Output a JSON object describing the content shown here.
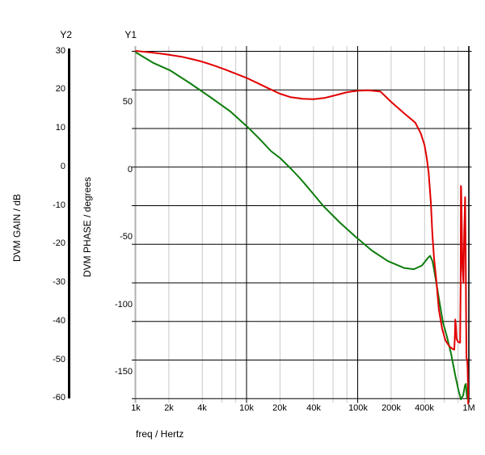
{
  "window": {
    "y2_header": "Y2",
    "y1_header": "Y1"
  },
  "colors": {
    "gain_curve": "#e10000",
    "phase_curve": "#0d7d0d",
    "grid_major": "#000000",
    "grid_minor": "#c9c9c9",
    "axis_gray": "#b0b0b0",
    "text": "#000000",
    "background": "#ffffff"
  },
  "axes": {
    "gain": {
      "title": "DVM GAIN / dB",
      "ticks": [
        {
          "label": "30",
          "value": 30
        },
        {
          "label": "20",
          "value": 20
        },
        {
          "label": "10",
          "value": 10
        },
        {
          "label": "0",
          "value": 0
        },
        {
          "label": "-10",
          "value": -10
        },
        {
          "label": "-20",
          "value": -20
        },
        {
          "label": "-30",
          "value": -30
        },
        {
          "label": "-40",
          "value": -40
        },
        {
          "label": "-50",
          "value": -50
        },
        {
          "label": "-60",
          "value": -60
        }
      ]
    },
    "phase": {
      "title": "DVM PHASE / degrees",
      "ticks": [
        {
          "label": "50",
          "value": 50
        },
        {
          "label": "0",
          "value": 0
        },
        {
          "label": "-50",
          "value": -50
        },
        {
          "label": "-100",
          "value": -100
        },
        {
          "label": "-150",
          "value": -150
        }
      ]
    },
    "freq": {
      "title": "freq / Hertz",
      "ticks": [
        {
          "label": "1k",
          "value": 1000,
          "grid": "axis"
        },
        {
          "label": "2k",
          "value": 2000,
          "grid": "minor"
        },
        {
          "label": "4k",
          "value": 4000,
          "grid": "minor"
        },
        {
          "label": "10k",
          "value": 10000,
          "grid": "major"
        },
        {
          "label": "20k",
          "value": 20000,
          "grid": "minor"
        },
        {
          "label": "40k",
          "value": 40000,
          "grid": "minor"
        },
        {
          "label": "100k",
          "value": 100000,
          "grid": "major"
        },
        {
          "label": "200k",
          "value": 200000,
          "grid": "minor"
        },
        {
          "label": "400k",
          "value": 400000,
          "grid": "minor"
        },
        {
          "label": "1M",
          "value": 1000000,
          "grid": "major"
        }
      ],
      "unlabeled_gridlines": [
        6000,
        8000,
        60000,
        80000,
        600000,
        800000
      ]
    }
  },
  "chart_data": {
    "type": "line",
    "title": "",
    "x_axis": {
      "label": "freq / Hertz",
      "scale": "log",
      "min": 1000,
      "max": 1000000,
      "tick_labels": [
        "1k",
        "2k",
        "4k",
        "10k",
        "20k",
        "40k",
        "100k",
        "200k",
        "400k",
        "1M"
      ]
    },
    "y_axes": [
      {
        "id": "Y2",
        "label": "DVM GAIN / dB",
        "min": -60,
        "max": 30,
        "ticks": [
          30,
          20,
          10,
          0,
          -10,
          -20,
          -30,
          -40,
          -50,
          -60
        ]
      },
      {
        "id": "Y1",
        "label": "DVM PHASE / degrees",
        "ticks": [
          50,
          0,
          -50,
          -100,
          -150
        ],
        "top_of_plot_value": 88,
        "bottom_of_plot_value": -169
      }
    ],
    "grid": "on",
    "legend": "none",
    "series": [
      {
        "name": "DVM GAIN",
        "axis": "Y2",
        "unit": "dB",
        "color": "#e10000",
        "points": [
          [
            1000,
            30.1
          ],
          [
            1300,
            29.8
          ],
          [
            1700,
            29.4
          ],
          [
            2000,
            29.1
          ],
          [
            2600,
            28.6
          ],
          [
            3200,
            28.0
          ],
          [
            4000,
            27.3
          ],
          [
            5000,
            26.4
          ],
          [
            6400,
            25.3
          ],
          [
            8000,
            24.2
          ],
          [
            10000,
            23.1
          ],
          [
            12500,
            21.8
          ],
          [
            16000,
            20.3
          ],
          [
            20000,
            19.0
          ],
          [
            25000,
            18.1
          ],
          [
            32000,
            17.7
          ],
          [
            40000,
            17.6
          ],
          [
            50000,
            17.9
          ],
          [
            63000,
            18.6
          ],
          [
            80000,
            19.4
          ],
          [
            100000,
            19.8
          ],
          [
            125000,
            19.9
          ],
          [
            160000,
            19.6
          ],
          [
            200000,
            16.9
          ],
          [
            260000,
            14.0
          ],
          [
            330000,
            11.5
          ],
          [
            370000,
            8.7
          ],
          [
            400000,
            5.6
          ],
          [
            420000,
            2.0
          ],
          [
            435000,
            -1.5
          ],
          [
            455000,
            -9.1
          ],
          [
            470000,
            -17.4
          ],
          [
            487000,
            -23.7
          ],
          [
            510000,
            -29.4
          ],
          [
            537000,
            -36.9
          ],
          [
            575000,
            -41.9
          ],
          [
            615000,
            -44.9
          ],
          [
            670000,
            -46.5
          ],
          [
            720000,
            -47.2
          ],
          [
            740000,
            -47.3
          ],
          [
            750000,
            -43.5
          ],
          [
            755000,
            -39.5
          ],
          [
            765000,
            -41.0
          ],
          [
            775000,
            -44.5
          ],
          [
            800000,
            -45.3
          ],
          [
            835000,
            -45.5
          ],
          [
            845000,
            -30.0
          ],
          [
            849000,
            -4.9
          ],
          [
            853000,
            -5.5
          ],
          [
            862000,
            -13.0
          ],
          [
            876000,
            -26.0
          ],
          [
            894000,
            -30.0
          ],
          [
            910000,
            -16.0
          ],
          [
            926000,
            -7.8
          ],
          [
            936000,
            -22.0
          ],
          [
            946000,
            -41.0
          ],
          [
            953000,
            -49.5
          ],
          [
            965000,
            -49.9
          ],
          [
            975000,
            -52.0
          ],
          [
            981000,
            -56.2
          ],
          [
            986000,
            -61.5
          ]
        ]
      },
      {
        "name": "DVM PHASE",
        "axis": "Y1",
        "unit": "degrees",
        "color": "#0d7d0d",
        "points": [
          [
            1000,
            87.4
          ],
          [
            1460,
            79.3
          ],
          [
            2040,
            74.0
          ],
          [
            3100,
            64.4
          ],
          [
            4700,
            54.2
          ],
          [
            7160,
            43.4
          ],
          [
            10200,
            32.0
          ],
          [
            12900,
            23.7
          ],
          [
            16600,
            14.1
          ],
          [
            20200,
            8.7
          ],
          [
            25200,
            0.9
          ],
          [
            30900,
            -6.9
          ],
          [
            38300,
            -15.9
          ],
          [
            49100,
            -26.6
          ],
          [
            68600,
            -38.6
          ],
          [
            95800,
            -49.4
          ],
          [
            134000,
            -59.6
          ],
          [
            187000,
            -67.4
          ],
          [
            262000,
            -72.5
          ],
          [
            320000,
            -73.4
          ],
          [
            378000,
            -70.7
          ],
          [
            426000,
            -65.3
          ],
          [
            448000,
            -63.5
          ],
          [
            471000,
            -67.4
          ],
          [
            486000,
            -73.4
          ],
          [
            511000,
            -84.1
          ],
          [
            546000,
            -98.5
          ],
          [
            585000,
            -112.9
          ],
          [
            634000,
            -123.1
          ],
          [
            693000,
            -136.2
          ],
          [
            753000,
            -151.8
          ],
          [
            805000,
            -162.6
          ],
          [
            849000,
            -169.8
          ],
          [
            890000,
            -166.8
          ],
          [
            922000,
            -159.6
          ],
          [
            940000,
            -158.4
          ],
          [
            965000,
            -169.8
          ]
        ]
      }
    ]
  }
}
